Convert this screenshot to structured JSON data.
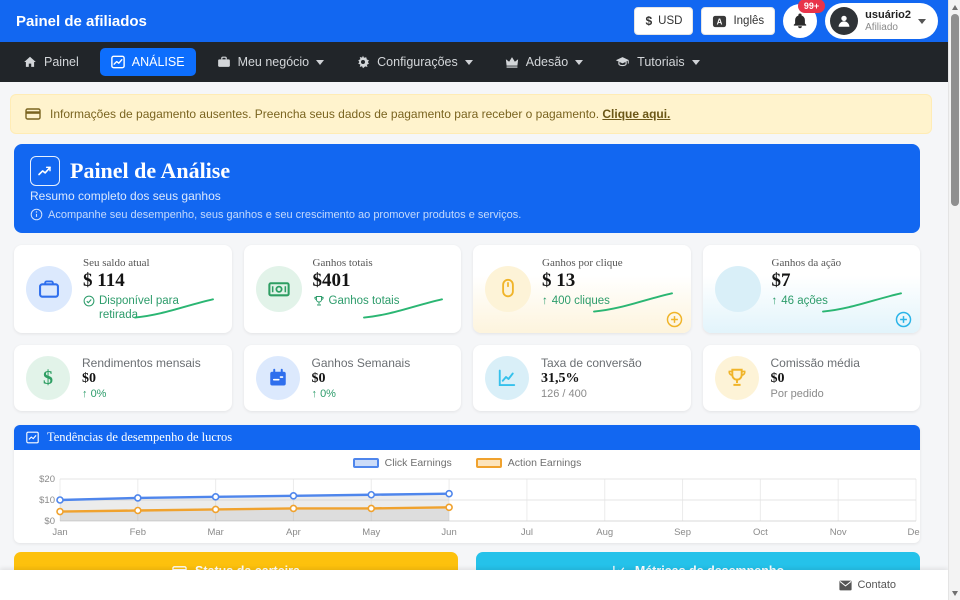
{
  "header": {
    "app_title": "Painel de afiliados",
    "currency_symbol": "$",
    "currency_label": "USD",
    "language_label": "Inglês",
    "notification_badge": "99+",
    "user_name": "usuário2",
    "user_role": "Afiliado"
  },
  "nav": {
    "items": [
      {
        "label": "Painel",
        "active": false,
        "dropdown": false
      },
      {
        "label": "ANÁLISE",
        "active": true,
        "dropdown": false
      },
      {
        "label": "Meu negócio",
        "active": false,
        "dropdown": true
      },
      {
        "label": "Configurações",
        "active": false,
        "dropdown": true
      },
      {
        "label": "Adesão",
        "active": false,
        "dropdown": true
      },
      {
        "label": "Tutoriais",
        "active": false,
        "dropdown": true
      }
    ]
  },
  "alert": {
    "message": "Informações de pagamento ausentes. Preencha seus dados de pagamento para receber o pagamento.",
    "link_label": "Clique aqui."
  },
  "hero": {
    "title": "Painel de Análise",
    "subtitle": "Resumo completo dos seus ganhos",
    "info": "Acompanhe seu desempenho, seus ganhos e seu crescimento ao promover produtos e serviços."
  },
  "stats_row1": [
    {
      "label": "Seu saldo atual",
      "value": "$ 114",
      "sub": "Disponível para retirada"
    },
    {
      "label": "Ganhos totais",
      "value": "$401",
      "sub": "Ganhos totais"
    },
    {
      "label": "Ganhos por clique",
      "value": "$ 13",
      "sub": "400 cliques"
    },
    {
      "label": "Ganhos da ação",
      "value": "$7",
      "sub": "46 ações"
    }
  ],
  "stats_row2": [
    {
      "label": "Rendimentos mensais",
      "value": "$0",
      "sub": "0%"
    },
    {
      "label": "Ganhos Semanais",
      "value": "$0",
      "sub": "0%"
    },
    {
      "label": "Taxa de conversão",
      "value": "31,5%",
      "sub": "126 / 400"
    },
    {
      "label": "Comissão média",
      "value": "$0",
      "sub": "Por pedido"
    }
  ],
  "chart": {
    "header_title": "Tendências de desempenho de lucros"
  },
  "chart_data": {
    "type": "line",
    "title": "Tendências de desempenho de lucros",
    "categories": [
      "Jan",
      "Feb",
      "Mar",
      "Apr",
      "May",
      "Jun",
      "Jul",
      "Aug",
      "Sep",
      "Oct",
      "Nov",
      "Dec"
    ],
    "series": [
      {
        "name": "Click Earnings",
        "color": "#4f86ec",
        "swatch_fill": "#ccdcf8",
        "values": [
          10,
          11,
          11.5,
          12,
          12.5,
          13
        ]
      },
      {
        "name": "Action Earnings",
        "color": "#f0a22e",
        "swatch_fill": "#fce4bd",
        "values": [
          4.5,
          5,
          5.5,
          6,
          6,
          6.5
        ]
      }
    ],
    "ylim": [
      0,
      20
    ],
    "yticks": [
      {
        "v": 0,
        "label": "$0"
      },
      {
        "v": 10,
        "label": "$10"
      },
      {
        "v": 20,
        "label": "$20"
      }
    ],
    "area_fill": "rgba(170,170,170,0.22)",
    "grid": true,
    "legend_position": "top"
  },
  "bottom_buttons": [
    {
      "label": "Status da carteira"
    },
    {
      "label": "Métricas de desempenho"
    }
  ],
  "footer": {
    "contact_label": "Contato"
  },
  "colors": {
    "header_blue": "#1267f1",
    "nav_dark": "#212529",
    "active_blue": "#0d6efd",
    "alert_bg": "#fff3cd",
    "green": "#2d9c6b",
    "sparkline_green": "#2bb673",
    "yellow": "#fdc10d",
    "cyan": "#25c2ea",
    "badge_red": "#e8344a"
  }
}
